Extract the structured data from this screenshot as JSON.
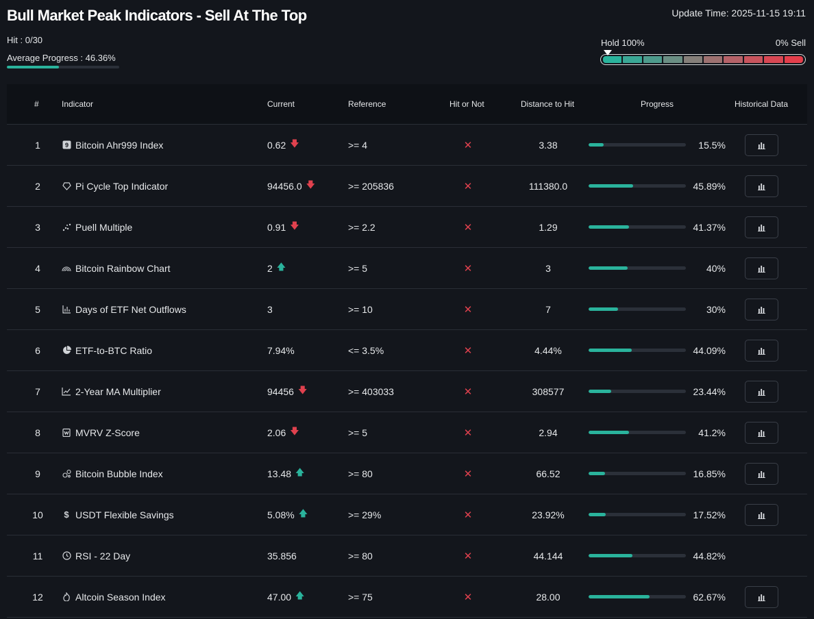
{
  "title": "Bull Market Peak Indicators - Sell At The Top",
  "update_time": "Update Time: 2025-11-15 19:11",
  "hit": "Hit : 0/30",
  "average_progress": "Average Progress : 46.36%",
  "average_progress_value": 0.4636,
  "gauge": {
    "left_label": "Hold 100%",
    "right_label": "0% Sell",
    "segment_colors": [
      "#2ab39c",
      "#3aa795",
      "#4e9b8c",
      "#6a8e83",
      "#857f79",
      "#9d7170",
      "#b56268",
      "#c8545d",
      "#d84753",
      "#e43e4b"
    ]
  },
  "colors": {
    "accent": "#2ab39c",
    "down": "#e0414e",
    "up": "#2ab39c"
  },
  "headers": {
    "num": "#",
    "indicator": "Indicator",
    "current": "Current",
    "reference": "Reference",
    "hit": "Hit or Not",
    "distance": "Distance to Hit",
    "progress": "Progress",
    "historical": "Historical Data"
  },
  "rows": [
    {
      "num": "1",
      "icon": "calendar-9-icon",
      "name": "Bitcoin Ahr999 Index",
      "current": "0.62",
      "trend": "down",
      "reference": ">= 4",
      "hit": "✕",
      "distance": "3.38",
      "progress": "15.5%",
      "progress_value": 0.155,
      "has_history": true
    },
    {
      "num": "2",
      "icon": "pi-cycle-icon",
      "name": "Pi Cycle Top Indicator",
      "current": "94456.0",
      "trend": "down",
      "reference": ">= 205836",
      "hit": "✕",
      "distance": "111380.0",
      "progress": "45.89%",
      "progress_value": 0.4589,
      "has_history": true
    },
    {
      "num": "3",
      "icon": "puell-icon",
      "name": "Puell Multiple",
      "current": "0.91",
      "trend": "down",
      "reference": ">= 2.2",
      "hit": "✕",
      "distance": "1.29",
      "progress": "41.37%",
      "progress_value": 0.4137,
      "has_history": true
    },
    {
      "num": "4",
      "icon": "rainbow-icon",
      "name": "Bitcoin Rainbow Chart",
      "current": "2",
      "trend": "up",
      "reference": ">= 5",
      "hit": "✕",
      "distance": "3",
      "progress": "40%",
      "progress_value": 0.4,
      "has_history": true
    },
    {
      "num": "5",
      "icon": "bar-chart-icon",
      "name": "Days of ETF Net Outflows",
      "current": "3",
      "trend": "",
      "reference": ">= 10",
      "hit": "✕",
      "distance": "7",
      "progress": "30%",
      "progress_value": 0.3,
      "has_history": true
    },
    {
      "num": "6",
      "icon": "pie-chart-icon",
      "name": "ETF-to-BTC Ratio",
      "current": "7.94%",
      "trend": "",
      "reference": "<= 3.5%",
      "hit": "✕",
      "distance": "4.44%",
      "progress": "44.09%",
      "progress_value": 0.4409,
      "has_history": true
    },
    {
      "num": "7",
      "icon": "line-chart-icon",
      "name": "2-Year MA Multiplier",
      "current": "94456",
      "trend": "down",
      "reference": ">= 403033",
      "hit": "✕",
      "distance": "308577",
      "progress": "23.44%",
      "progress_value": 0.2344,
      "has_history": true
    },
    {
      "num": "8",
      "icon": "mvrv-icon",
      "name": "MVRV Z-Score",
      "current": "2.06",
      "trend": "down",
      "reference": ">= 5",
      "hit": "✕",
      "distance": "2.94",
      "progress": "41.2%",
      "progress_value": 0.412,
      "has_history": true
    },
    {
      "num": "9",
      "icon": "bubble-icon",
      "name": "Bitcoin Bubble Index",
      "current": "13.48",
      "trend": "up",
      "reference": ">= 80",
      "hit": "✕",
      "distance": "66.52",
      "progress": "16.85%",
      "progress_value": 0.1685,
      "has_history": true
    },
    {
      "num": "10",
      "icon": "dollar-icon",
      "name": "USDT Flexible Savings",
      "current": "5.08%",
      "trend": "up",
      "reference": ">= 29%",
      "hit": "✕",
      "distance": "23.92%",
      "progress": "17.52%",
      "progress_value": 0.1752,
      "has_history": true
    },
    {
      "num": "11",
      "icon": "clock-icon",
      "name": "RSI - 22 Day",
      "current": "35.856",
      "trend": "",
      "reference": ">= 80",
      "hit": "✕",
      "distance": "44.144",
      "progress": "44.82%",
      "progress_value": 0.4482,
      "has_history": false
    },
    {
      "num": "12",
      "icon": "flame-icon",
      "name": "Altcoin Season Index",
      "current": "47.00",
      "trend": "up",
      "reference": ">= 75",
      "hit": "✕",
      "distance": "28.00",
      "progress": "62.67%",
      "progress_value": 0.6267,
      "has_history": true
    }
  ]
}
